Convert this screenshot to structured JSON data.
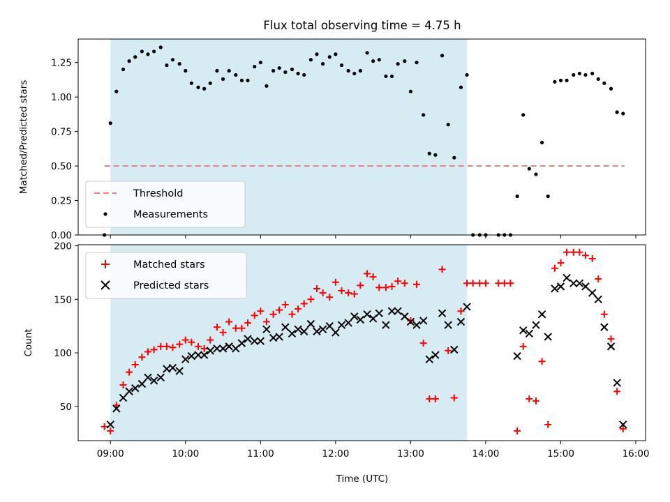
{
  "chart_data": [
    {
      "type": "scatter",
      "title": "Flux total observing time = 4.75 h",
      "ylabel": "Matched/Predicted stars",
      "xlabel": "",
      "xlim": [
        8.57,
        16.13
      ],
      "ylim": [
        0,
        1.42
      ],
      "x_ticks": [
        "09:00",
        "10:00",
        "11:00",
        "12:00",
        "13:00",
        "14:00",
        "15:00",
        "16:00"
      ],
      "y_ticks": [
        "0.00",
        "0.25",
        "0.50",
        "0.75",
        "1.00",
        "1.25"
      ],
      "shaded_span": [
        9.0,
        13.75
      ],
      "legend_position": "lower-left",
      "threshold": {
        "name": "Threshold",
        "value": 0.5,
        "x_range": [
          8.92,
          15.85
        ],
        "color": "#f08080"
      },
      "series": [
        {
          "name": "Measurements",
          "color": "#000000",
          "marker": "dot",
          "points": [
            [
              8.92,
              0.0
            ],
            [
              9.0,
              0.81
            ],
            [
              9.08,
              1.04
            ],
            [
              9.17,
              1.2
            ],
            [
              9.25,
              1.26
            ],
            [
              9.33,
              1.29
            ],
            [
              9.42,
              1.33
            ],
            [
              9.5,
              1.31
            ],
            [
              9.58,
              1.33
            ],
            [
              9.67,
              1.36
            ],
            [
              9.75,
              1.23
            ],
            [
              9.83,
              1.27
            ],
            [
              9.92,
              1.24
            ],
            [
              10.0,
              1.19
            ],
            [
              10.08,
              1.1
            ],
            [
              10.17,
              1.07
            ],
            [
              10.25,
              1.06
            ],
            [
              10.33,
              1.1
            ],
            [
              10.42,
              1.19
            ],
            [
              10.5,
              1.13
            ],
            [
              10.58,
              1.19
            ],
            [
              10.67,
              1.16
            ],
            [
              10.75,
              1.12
            ],
            [
              10.83,
              1.12
            ],
            [
              10.92,
              1.22
            ],
            [
              11.0,
              1.25
            ],
            [
              11.08,
              1.08
            ],
            [
              11.17,
              1.19
            ],
            [
              11.25,
              1.21
            ],
            [
              11.33,
              1.18
            ],
            [
              11.42,
              1.2
            ],
            [
              11.5,
              1.17
            ],
            [
              11.58,
              1.16
            ],
            [
              11.67,
              1.27
            ],
            [
              11.75,
              1.31
            ],
            [
              11.83,
              1.24
            ],
            [
              11.92,
              1.29
            ],
            [
              12.0,
              1.31
            ],
            [
              12.08,
              1.23
            ],
            [
              12.17,
              1.19
            ],
            [
              12.25,
              1.17
            ],
            [
              12.33,
              1.19
            ],
            [
              12.42,
              1.32
            ],
            [
              12.5,
              1.26
            ],
            [
              12.58,
              1.27
            ],
            [
              12.67,
              1.15
            ],
            [
              12.75,
              1.15
            ],
            [
              12.83,
              1.24
            ],
            [
              12.92,
              1.26
            ],
            [
              13.0,
              1.04
            ],
            [
              13.08,
              1.25
            ],
            [
              13.17,
              0.87
            ],
            [
              13.25,
              0.59
            ],
            [
              13.33,
              0.58
            ],
            [
              13.42,
              1.3
            ],
            [
              13.5,
              0.8
            ],
            [
              13.58,
              0.56
            ],
            [
              13.67,
              1.07
            ],
            [
              13.75,
              1.16
            ],
            [
              13.83,
              0.0
            ],
            [
              13.92,
              0.0
            ],
            [
              14.0,
              0.0
            ],
            [
              14.17,
              0.0
            ],
            [
              14.25,
              0.0
            ],
            [
              14.33,
              0.0
            ],
            [
              14.42,
              0.28
            ],
            [
              14.5,
              0.87
            ],
            [
              14.58,
              0.48
            ],
            [
              14.67,
              0.44
            ],
            [
              14.75,
              0.67
            ],
            [
              14.83,
              0.28
            ],
            [
              14.92,
              1.11
            ],
            [
              15.0,
              1.12
            ],
            [
              15.08,
              1.12
            ],
            [
              15.17,
              1.16
            ],
            [
              15.25,
              1.17
            ],
            [
              15.33,
              1.16
            ],
            [
              15.42,
              1.17
            ],
            [
              15.5,
              1.13
            ],
            [
              15.58,
              1.1
            ],
            [
              15.67,
              1.06
            ],
            [
              15.75,
              0.89
            ],
            [
              15.83,
              0.88
            ]
          ]
        }
      ]
    },
    {
      "type": "scatter",
      "title": "",
      "ylabel": "Count",
      "xlabel": "Time (UTC)",
      "xlim": [
        8.57,
        16.13
      ],
      "ylim": [
        18,
        201
      ],
      "x_ticks": [
        "09:00",
        "10:00",
        "11:00",
        "12:00",
        "13:00",
        "14:00",
        "15:00",
        "16:00"
      ],
      "y_ticks": [
        "50",
        "100",
        "150",
        "200"
      ],
      "shaded_span": [
        9.0,
        13.75
      ],
      "legend_position": "upper-left",
      "series": [
        {
          "name": "Matched stars",
          "color": "#ff0000",
          "marker": "plus",
          "points": [
            [
              8.92,
              31
            ],
            [
              9.0,
              27
            ],
            [
              9.08,
              51
            ],
            [
              9.17,
              70
            ],
            [
              9.25,
              82
            ],
            [
              9.33,
              89
            ],
            [
              9.42,
              96
            ],
            [
              9.5,
              101
            ],
            [
              9.58,
              103
            ],
            [
              9.67,
              106
            ],
            [
              9.75,
              106
            ],
            [
              9.83,
              105
            ],
            [
              9.92,
              108
            ],
            [
              10.0,
              112
            ],
            [
              10.08,
              110
            ],
            [
              10.17,
              106
            ],
            [
              10.25,
              104
            ],
            [
              10.33,
              112
            ],
            [
              10.42,
              124
            ],
            [
              10.5,
              119
            ],
            [
              10.58,
              129
            ],
            [
              10.67,
              123
            ],
            [
              10.75,
              123
            ],
            [
              10.83,
              128
            ],
            [
              10.92,
              135
            ],
            [
              11.0,
              139
            ],
            [
              11.08,
              129
            ],
            [
              11.17,
              136
            ],
            [
              11.25,
              140
            ],
            [
              11.33,
              145
            ],
            [
              11.42,
              136
            ],
            [
              11.5,
              141
            ],
            [
              11.58,
              146
            ],
            [
              11.67,
              150
            ],
            [
              11.75,
              160
            ],
            [
              11.83,
              156
            ],
            [
              11.92,
              152
            ],
            [
              12.0,
              166
            ],
            [
              12.08,
              158
            ],
            [
              12.17,
              156
            ],
            [
              12.25,
              155
            ],
            [
              12.33,
              163
            ],
            [
              12.42,
              174
            ],
            [
              12.5,
              171
            ],
            [
              12.58,
              161
            ],
            [
              12.67,
              161
            ],
            [
              12.75,
              162
            ],
            [
              12.83,
              167
            ],
            [
              12.92,
              165
            ],
            [
              13.0,
              130
            ],
            [
              13.08,
              164
            ],
            [
              13.17,
              109
            ],
            [
              13.25,
              57
            ],
            [
              13.33,
              57
            ],
            [
              13.42,
              178
            ],
            [
              13.5,
              102
            ],
            [
              13.58,
              58
            ],
            [
              13.67,
              139
            ],
            [
              13.75,
              165
            ],
            [
              13.83,
              165
            ],
            [
              13.92,
              165
            ],
            [
              14.0,
              165
            ],
            [
              14.17,
              165
            ],
            [
              14.25,
              165
            ],
            [
              14.33,
              165
            ],
            [
              14.42,
              27
            ],
            [
              14.5,
              106
            ],
            [
              14.58,
              57
            ],
            [
              14.67,
              55
            ],
            [
              14.75,
              92
            ],
            [
              14.83,
              33
            ],
            [
              14.92,
              179
            ],
            [
              15.0,
              184
            ],
            [
              15.08,
              194
            ],
            [
              15.17,
              194
            ],
            [
              15.25,
              194
            ],
            [
              15.33,
              191
            ],
            [
              15.42,
              188
            ],
            [
              15.5,
              169
            ],
            [
              15.58,
              136
            ],
            [
              15.67,
              113
            ],
            [
              15.75,
              64
            ],
            [
              15.83,
              29
            ]
          ]
        },
        {
          "name": "Predicted stars",
          "color": "#000000",
          "marker": "x",
          "points": [
            [
              9.0,
              33
            ],
            [
              9.08,
              48
            ],
            [
              9.17,
              58
            ],
            [
              9.25,
              64
            ],
            [
              9.33,
              67
            ],
            [
              9.42,
              71
            ],
            [
              9.5,
              77
            ],
            [
              9.58,
              74
            ],
            [
              9.67,
              77
            ],
            [
              9.75,
              85
            ],
            [
              9.83,
              86
            ],
            [
              9.92,
              83
            ],
            [
              10.0,
              94
            ],
            [
              10.08,
              97
            ],
            [
              10.17,
              98
            ],
            [
              10.25,
              98
            ],
            [
              10.33,
              102
            ],
            [
              10.42,
              104
            ],
            [
              10.5,
              104
            ],
            [
              10.58,
              106
            ],
            [
              10.67,
              104
            ],
            [
              10.75,
              109
            ],
            [
              10.83,
              113
            ],
            [
              10.92,
              111
            ],
            [
              11.0,
              111
            ],
            [
              11.08,
              122
            ],
            [
              11.17,
              114
            ],
            [
              11.25,
              115
            ],
            [
              11.33,
              124
            ],
            [
              11.42,
              118
            ],
            [
              11.5,
              122
            ],
            [
              11.58,
              120
            ],
            [
              11.67,
              127
            ],
            [
              11.75,
              120
            ],
            [
              11.83,
              122
            ],
            [
              11.92,
              125
            ],
            [
              12.0,
              119
            ],
            [
              12.08,
              126
            ],
            [
              12.17,
              128
            ],
            [
              12.25,
              134
            ],
            [
              12.33,
              131
            ],
            [
              12.42,
              136
            ],
            [
              12.5,
              132
            ],
            [
              12.58,
              137
            ],
            [
              12.67,
              126
            ],
            [
              12.75,
              139
            ],
            [
              12.83,
              139
            ],
            [
              12.92,
              134
            ],
            [
              13.0,
              129
            ],
            [
              13.08,
              126
            ],
            [
              13.17,
              130
            ],
            [
              13.25,
              94
            ],
            [
              13.33,
              98
            ],
            [
              13.42,
              137
            ],
            [
              13.5,
              126
            ],
            [
              13.58,
              103
            ],
            [
              13.67,
              129
            ],
            [
              13.75,
              143
            ],
            [
              14.42,
              97
            ],
            [
              14.5,
              121
            ],
            [
              14.58,
              118
            ],
            [
              14.67,
              126
            ],
            [
              14.75,
              136
            ],
            [
              14.83,
              115
            ],
            [
              14.92,
              160
            ],
            [
              15.0,
              162
            ],
            [
              15.08,
              170
            ],
            [
              15.17,
              165
            ],
            [
              15.25,
              165
            ],
            [
              15.33,
              162
            ],
            [
              15.42,
              156
            ],
            [
              15.5,
              150
            ],
            [
              15.58,
              124
            ],
            [
              15.67,
              106
            ],
            [
              15.75,
              72
            ],
            [
              15.83,
              33
            ]
          ]
        }
      ]
    }
  ]
}
